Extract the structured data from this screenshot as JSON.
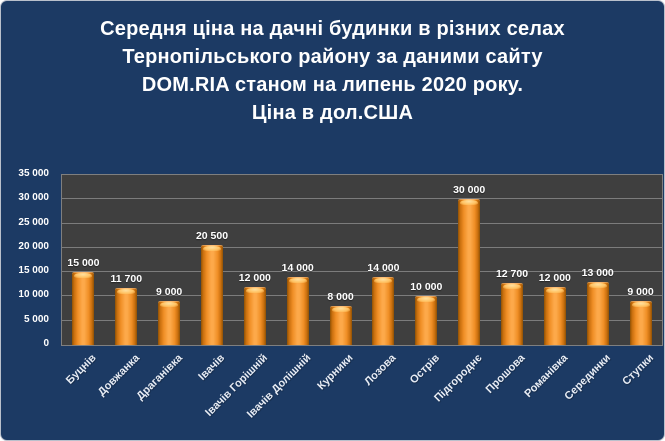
{
  "title": {
    "lines": [
      "Середня ціна на дачні будинки в різних селах",
      "Тернопільського району за даними сайту",
      "DOM.RIA станом на липень 2020 року.",
      "Ціна в дол.США"
    ]
  },
  "chart_data": {
    "type": "bar",
    "title": "Середня ціна на дачні будинки в різних селах Тернопільського району за даними сайту DOM.RIA станом на липень 2020 року. Ціна в дол.США",
    "categories": [
      "Буцнів",
      "Довжанка",
      "Драганівка",
      "Івачів",
      "Івачів Горішній",
      "Івачів Долішній",
      "Курники",
      "Лозова",
      "Острів",
      "Підгороднє",
      "Прошова",
      "Романівка",
      "Серединки",
      "Ступки"
    ],
    "values": [
      15000,
      11700,
      9000,
      20500,
      12000,
      14000,
      8000,
      14000,
      10000,
      30000,
      12700,
      12000,
      13000,
      9000
    ],
    "value_labels": [
      "15 000",
      "11 700",
      "9 000",
      "20 500",
      "12 000",
      "14 000",
      "8 000",
      "14 000",
      "10 000",
      "30 000",
      "12 700",
      "12 000",
      "13 000",
      "9 000"
    ],
    "xlabel": "",
    "ylabel": "",
    "ylim": [
      0,
      35000
    ],
    "ytick_step": 5000,
    "ytick_labels": [
      "0",
      "5 000",
      "10 000",
      "15 000",
      "20 000",
      "25 000",
      "30 000",
      "35 000"
    ],
    "grid": true,
    "legend_position": "none"
  },
  "colors": {
    "background": "#1c3a64",
    "plot_background": "#3f3f3f",
    "gridline": "#7c7c7c",
    "bar_fill": "#f79a2e",
    "bar_edge": "#8f5105",
    "bar_highlight": "#ffc364",
    "title_text": "#ffffff",
    "axis_text": "#ffffff"
  }
}
